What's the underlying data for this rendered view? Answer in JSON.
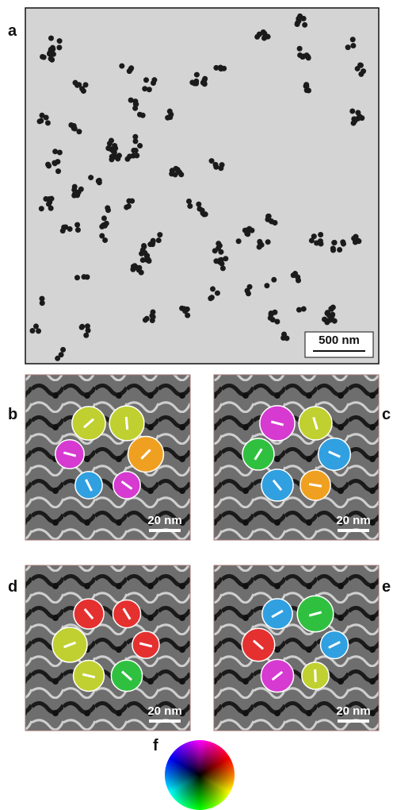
{
  "panels": [
    {
      "label": "a",
      "scale_bar": "500 nm"
    },
    {
      "label": "b",
      "scale_bar": "20 nm"
    },
    {
      "label": "c",
      "scale_bar": "20 nm"
    },
    {
      "label": "d",
      "scale_bar": "20 nm"
    },
    {
      "label": "e",
      "scale_bar": "20 nm"
    },
    {
      "label": "f"
    }
  ]
}
